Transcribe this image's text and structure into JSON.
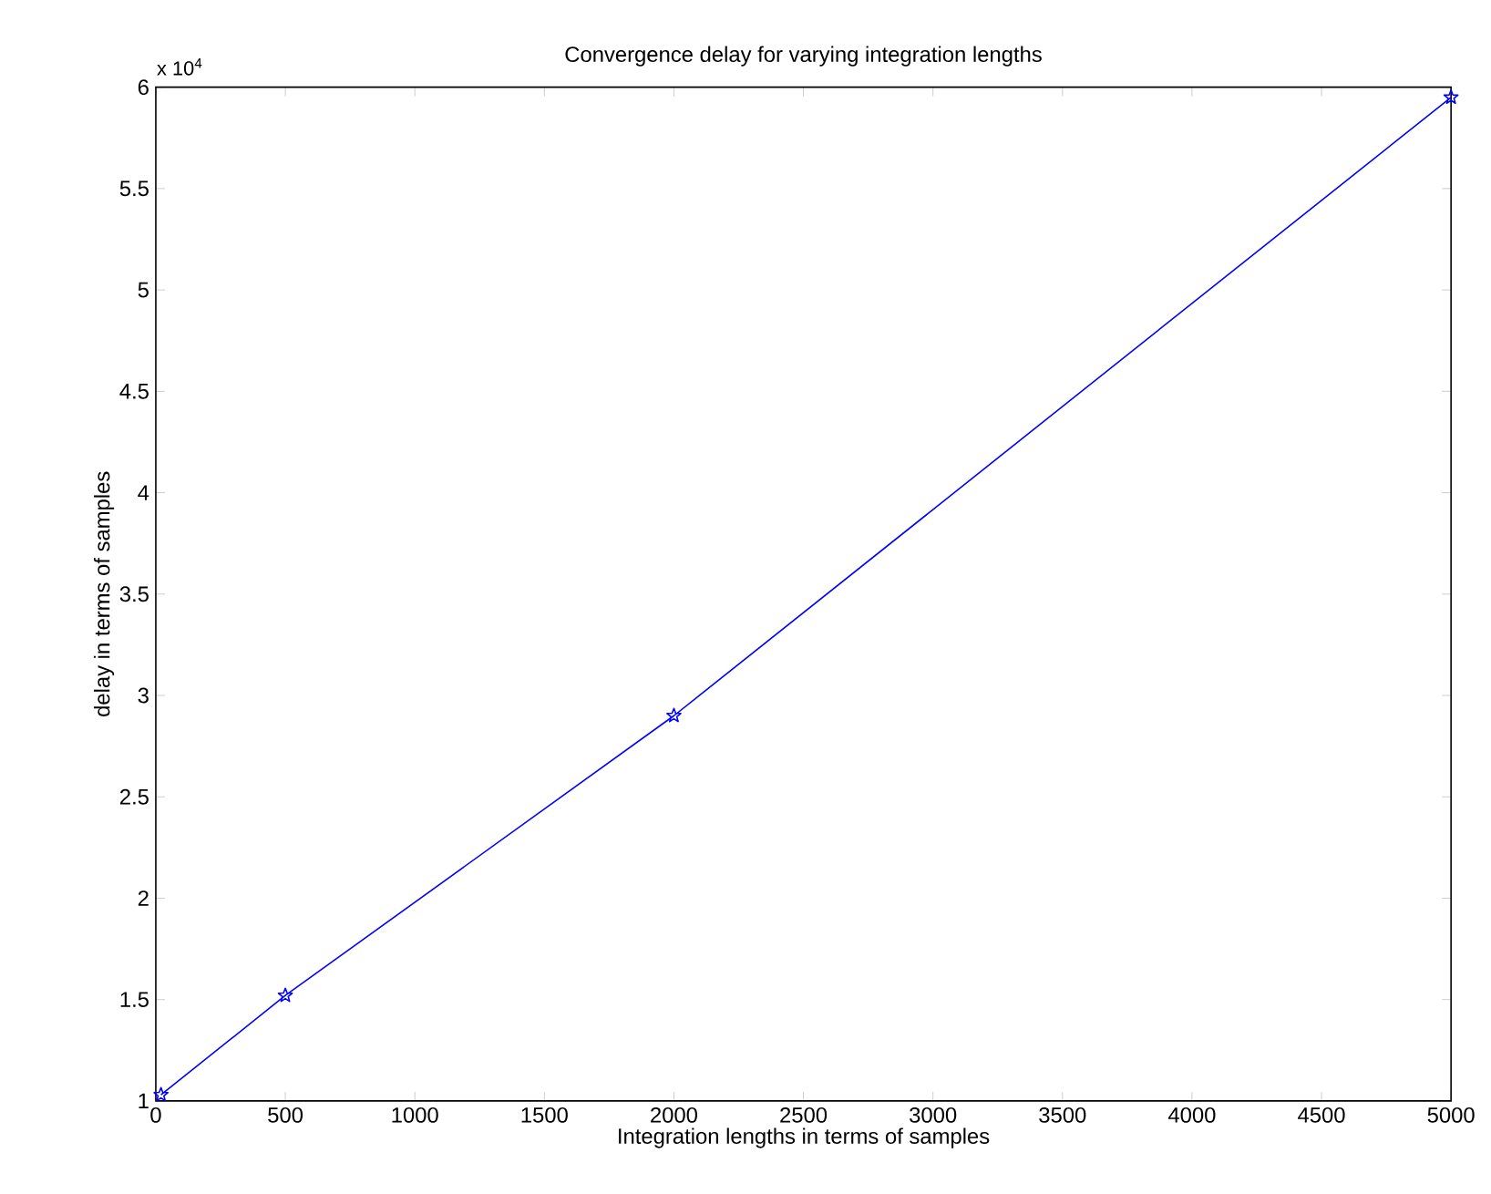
{
  "chart_data": {
    "type": "line",
    "title": "Convergence delay for varying integration lengths",
    "xlabel": "Integration lengths in terms of samples",
    "ylabel": "delay in terms of samples",
    "annotations": [
      "x 10$^{4}$"
    ],
    "x": [
      20,
      500,
      2000,
      5000
    ],
    "series": [
      {
        "color": "#0000ff",
        "values": [
          1.03,
          1.52,
          2.9,
          5.95
        ]
      }
    ],
    "marker": "star",
    "line_style": "solid",
    "xlim": [
      0,
      5000
    ],
    "xticks": [
      0,
      500,
      1000,
      1500,
      2000,
      2500,
      3000,
      3500,
      4000,
      4500,
      5000
    ],
    "ylim": [
      1,
      6
    ],
    "yticks": [
      1,
      1.5,
      2,
      2.5,
      3,
      3.5,
      4,
      4.5,
      5,
      5.5,
      6
    ]
  }
}
